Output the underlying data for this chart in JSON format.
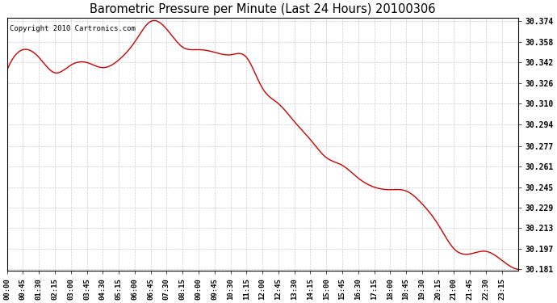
{
  "title": "Barometric Pressure per Minute (Last 24 Hours) 20100306",
  "copyright": "Copyright 2010 Cartronics.com",
  "line_color": "#cc0000",
  "background_color": "#ffffff",
  "grid_color": "#cccccc",
  "ylim_min": 30.181,
  "ylim_max": 30.374,
  "yticks": [
    30.374,
    30.358,
    30.342,
    30.326,
    30.31,
    30.294,
    30.277,
    30.261,
    30.245,
    30.229,
    30.213,
    30.197,
    30.181
  ],
  "xtick_labels": [
    "00:00",
    "00:45",
    "01:30",
    "02:15",
    "03:00",
    "03:45",
    "04:30",
    "05:15",
    "06:00",
    "06:45",
    "07:30",
    "08:15",
    "09:00",
    "09:45",
    "10:30",
    "11:15",
    "12:00",
    "12:45",
    "13:30",
    "14:15",
    "15:00",
    "15:45",
    "16:30",
    "17:15",
    "18:00",
    "18:45",
    "19:30",
    "20:15",
    "21:00",
    "21:45",
    "22:30",
    "23:15"
  ],
  "keypoints_x": [
    0,
    45,
    90,
    135,
    180,
    225,
    270,
    315,
    360,
    405,
    450,
    495,
    540,
    585,
    630,
    675,
    720,
    765,
    810,
    855,
    900,
    945,
    990,
    1035,
    1080,
    1125,
    1170,
    1215,
    1260,
    1305,
    1350,
    1395,
    1440
  ],
  "keypoints_y": [
    30.336,
    30.352,
    30.346,
    30.334,
    30.34,
    30.342,
    30.338,
    30.344,
    30.358,
    30.374,
    30.368,
    30.354,
    30.352,
    30.35,
    30.348,
    30.346,
    30.322,
    30.31,
    30.296,
    30.282,
    30.268,
    30.262,
    30.252,
    30.245,
    30.243,
    30.242,
    30.232,
    30.216,
    30.197,
    30.193,
    30.195,
    30.188,
    30.181
  ]
}
